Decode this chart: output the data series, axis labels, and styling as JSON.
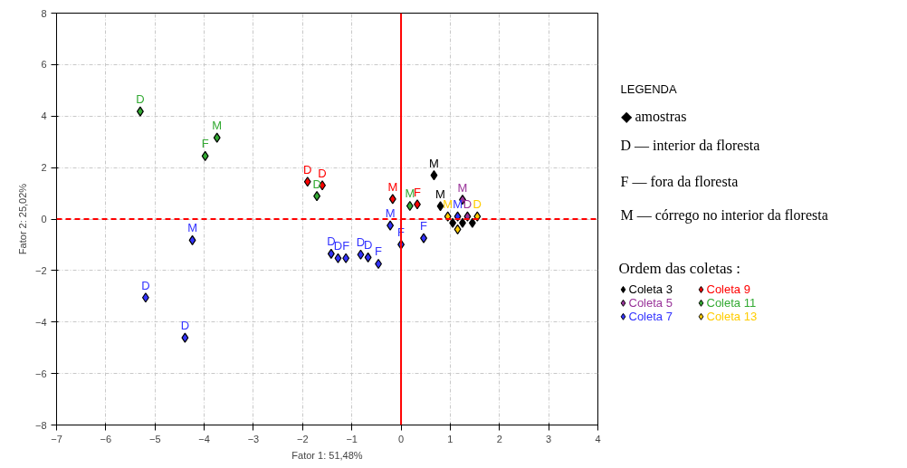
{
  "chart_data": {
    "type": "scatter",
    "xlabel": "Fator 1: 51,48%",
    "ylabel": "Fator 2: 25,02%",
    "xlim": [
      -7,
      4
    ],
    "ylim": [
      -8,
      8
    ],
    "xticks": [
      -7,
      -6,
      -5,
      -4,
      -3,
      -2,
      -1,
      0,
      1,
      2,
      3,
      4
    ],
    "yticks": [
      -8,
      -6,
      -4,
      -2,
      0,
      2,
      4,
      6,
      8
    ],
    "grid": true,
    "marker": "diamond",
    "legend": "right",
    "legend_title": "Ordem das coletas :",
    "annotations": [
      "LEGENDA",
      "◆ amostras",
      "D — interior da floresta",
      "F — fora da floresta",
      "M — córrego no interior da floresta"
    ],
    "ref_lines": [
      {
        "axis": "y",
        "value": 0,
        "color": "#ff0000",
        "line_style": "dashed"
      },
      {
        "axis": "x",
        "value": 0,
        "color": "#ff0000",
        "line_style": "solid"
      }
    ],
    "series": [
      {
        "name": "Coleta 3",
        "color": "#000000",
        "x": [
          0.67,
          0.8,
          1.05,
          1.25,
          1.45
        ],
        "values": [
          1.7,
          0.5,
          -0.15,
          -0.15,
          -0.15
        ],
        "value_labels": [
          "M",
          "M",
          null,
          null,
          null
        ]
      },
      {
        "name": "Coleta 5",
        "color": "#993399",
        "x": [
          1.25,
          1.35
        ],
        "values": [
          0.75,
          0.1
        ],
        "value_labels": [
          "M",
          "D"
        ]
      },
      {
        "name": "Coleta 7",
        "color": "#3333ff",
        "x": [
          -4.24,
          -5.19,
          -4.39,
          -1.42,
          -1.28,
          -1.12,
          -0.82,
          -0.67,
          -0.46,
          -0.22,
          0,
          0.46,
          1.15
        ],
        "values": [
          -0.82,
          -3.05,
          -4.61,
          -1.35,
          -1.52,
          -1.52,
          -1.38,
          -1.49,
          -1.74,
          -0.25,
          -0.99,
          -0.74,
          0.1
        ],
        "value_labels": [
          "M",
          "D",
          "D",
          "D",
          "D",
          "F",
          "D",
          "D",
          "F",
          "M",
          "F",
          "F",
          "M"
        ]
      },
      {
        "name": "Coleta 9",
        "color": "#ff0000",
        "x": [
          -1.9,
          -1.6,
          -0.17,
          0.33
        ],
        "values": [
          1.45,
          1.31,
          0.78,
          0.57
        ],
        "value_labels": [
          "D",
          "D",
          "M",
          "F"
        ]
      },
      {
        "name": "Coleta 11",
        "color": "#33aa33",
        "x": [
          -5.3,
          -3.74,
          -3.98,
          -1.71,
          0.18
        ],
        "values": [
          4.18,
          3.16,
          2.45,
          0.89,
          0.51
        ],
        "value_labels": [
          "D",
          "M",
          "F",
          "D",
          "M"
        ]
      },
      {
        "name": "Coleta 13",
        "color": "#ffcc00",
        "x": [
          0.95,
          1.55,
          1.15
        ],
        "values": [
          0.1,
          0.1,
          -0.4
        ],
        "value_labels": [
          "M",
          "D",
          null
        ]
      }
    ]
  }
}
